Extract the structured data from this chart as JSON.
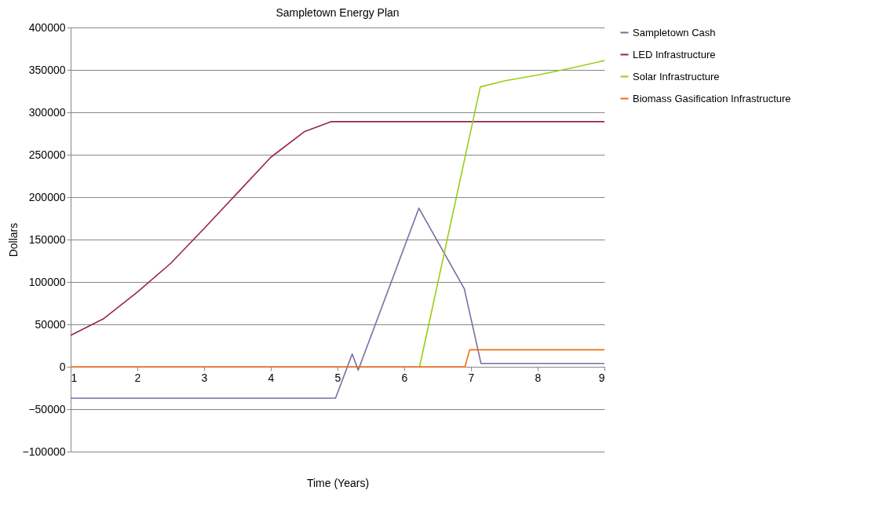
{
  "chart_data": {
    "type": "line",
    "title": "Sampletown Energy Plan",
    "xlabel": "Time (Years)",
    "ylabel": "Dollars",
    "xlim": [
      1,
      9
    ],
    "xticks": [
      1,
      2,
      3,
      4,
      5,
      6,
      7,
      8,
      9
    ],
    "ylim": [
      -100000,
      400000
    ],
    "yticks": [
      -100000,
      -50000,
      0,
      50000,
      100000,
      150000,
      200000,
      250000,
      300000,
      350000,
      400000
    ],
    "grid": "y",
    "legend": "right",
    "marker": "none",
    "line_style": "solid",
    "series": [
      {
        "name": "Sampletown Cash",
        "color": "#7b6ba3",
        "x": [
          1,
          4.97,
          5.22,
          5.31,
          6.22,
          6.9,
          7.15,
          9
        ],
        "values": [
          -37000,
          -37000,
          15000,
          -4000,
          187000,
          92000,
          4000,
          4000
        ]
      },
      {
        "name": "LED Infrastructure",
        "color": "#98244f",
        "x": [
          1,
          1.5,
          2,
          2.5,
          3,
          3.5,
          4,
          4.5,
          4.9,
          9
        ],
        "values": [
          37000,
          57000,
          88000,
          122000,
          163000,
          205000,
          247000,
          277000,
          289000,
          289000
        ]
      },
      {
        "name": "Solar Infrastructure",
        "color": "#9acd1a",
        "x": [
          6.23,
          7.14,
          7.5,
          8,
          8.5,
          9
        ],
        "values": [
          0,
          330000,
          337000,
          344000,
          352000,
          361000
        ]
      },
      {
        "name": "Biomass Gasification Infrastructure",
        "color": "#f26b12",
        "x": [
          1,
          6.91,
          6.98,
          9
        ],
        "values": [
          0,
          0,
          20000,
          20000
        ]
      }
    ]
  }
}
